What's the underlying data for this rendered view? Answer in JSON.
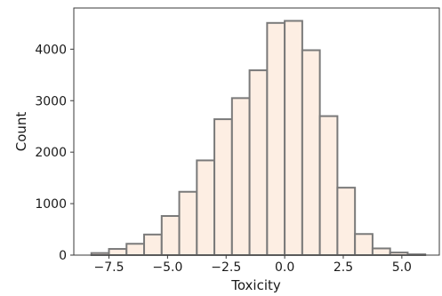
{
  "chart_data": {
    "type": "bar",
    "style": "histogram",
    "xlabel": "Toxicity",
    "ylabel": "Count",
    "xlim": [
      -9.0,
      6.6
    ],
    "ylim": [
      0,
      4800
    ],
    "xticks": [
      -7.5,
      -5.0,
      -2.5,
      0.0,
      2.5,
      5.0
    ],
    "xtick_labels": [
      "−7.5",
      "−5.0",
      "−2.5",
      "0.0",
      "2.5",
      "5.0"
    ],
    "yticks": [
      0,
      1000,
      2000,
      3000,
      4000
    ],
    "ytick_labels": [
      "0",
      "1000",
      "2000",
      "3000",
      "4000"
    ],
    "grid": false,
    "bar_fill": "#fdeee3",
    "bar_edge": "#7a7a7a",
    "bins": [
      {
        "x0": -8.25,
        "x1": -7.5,
        "count": 40
      },
      {
        "x0": -7.5,
        "x1": -6.75,
        "count": 120
      },
      {
        "x0": -6.75,
        "x1": -6.0,
        "count": 220
      },
      {
        "x0": -6.0,
        "x1": -5.25,
        "count": 400
      },
      {
        "x0": -5.25,
        "x1": -4.5,
        "count": 760
      },
      {
        "x0": -4.5,
        "x1": -3.75,
        "count": 1230
      },
      {
        "x0": -3.75,
        "x1": -3.0,
        "count": 1840
      },
      {
        "x0": -3.0,
        "x1": -2.25,
        "count": 2640
      },
      {
        "x0": -2.25,
        "x1": -1.5,
        "count": 3050
      },
      {
        "x0": -1.5,
        "x1": -0.75,
        "count": 3590
      },
      {
        "x0": -0.75,
        "x1": 0.0,
        "count": 4510
      },
      {
        "x0": 0.0,
        "x1": 0.75,
        "count": 4550
      },
      {
        "x0": 0.75,
        "x1": 1.5,
        "count": 3980
      },
      {
        "x0": 1.5,
        "x1": 2.25,
        "count": 2700
      },
      {
        "x0": 2.25,
        "x1": 3.0,
        "count": 1310
      },
      {
        "x0": 3.0,
        "x1": 3.75,
        "count": 410
      },
      {
        "x0": 3.75,
        "x1": 4.5,
        "count": 130
      },
      {
        "x0": 4.5,
        "x1": 5.25,
        "count": 50
      },
      {
        "x0": 5.25,
        "x1": 6.0,
        "count": 15
      }
    ]
  }
}
